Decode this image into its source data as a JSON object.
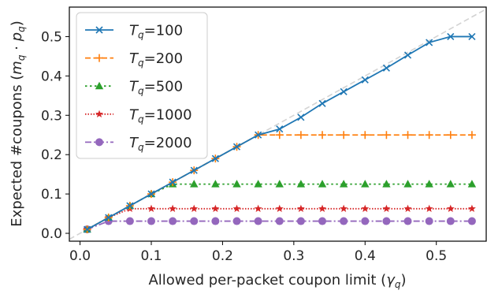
{
  "chart_data": {
    "type": "line",
    "xlabel": "Allowed per-packet coupon limit (γ_q)",
    "ylabel": "Expected #coupons (m_q · p_q)",
    "xlim": [
      -0.015,
      0.57
    ],
    "ylim": [
      -0.02,
      0.575
    ],
    "xticks": [
      "0.0",
      "0.1",
      "0.2",
      "0.3",
      "0.4",
      "0.5"
    ],
    "yticks": [
      "0.0",
      "0.1",
      "0.2",
      "0.3",
      "0.4",
      "0.5"
    ],
    "grid": false,
    "legend_position": "top-left",
    "reference_line": {
      "style": "dashed",
      "color": "#d3d3d3",
      "description": "y = x"
    },
    "series": [
      {
        "name": "T_q=100",
        "color": "#1f77b4",
        "dash": "solid",
        "marker": "x",
        "x": [
          0.01,
          0.04,
          0.07,
          0.1,
          0.13,
          0.16,
          0.19,
          0.22,
          0.25,
          0.28,
          0.31,
          0.34,
          0.37,
          0.4,
          0.43,
          0.46,
          0.49,
          0.52,
          0.55
        ],
        "y": [
          0.01,
          0.04,
          0.07,
          0.1,
          0.13,
          0.16,
          0.19,
          0.22,
          0.25,
          0.265,
          0.295,
          0.33,
          0.36,
          0.39,
          0.42,
          0.453,
          0.485,
          0.5,
          0.5
        ]
      },
      {
        "name": "T_q=200",
        "color": "#ff7f0e",
        "dash": "dashed",
        "marker": "plus",
        "x": [
          0.01,
          0.04,
          0.07,
          0.1,
          0.13,
          0.16,
          0.19,
          0.22,
          0.25,
          0.28,
          0.31,
          0.34,
          0.37,
          0.4,
          0.43,
          0.46,
          0.49,
          0.52,
          0.55
        ],
        "y": [
          0.01,
          0.04,
          0.07,
          0.1,
          0.13,
          0.16,
          0.19,
          0.22,
          0.25,
          0.25,
          0.25,
          0.25,
          0.25,
          0.25,
          0.25,
          0.25,
          0.25,
          0.25,
          0.25
        ]
      },
      {
        "name": "T_q=500",
        "color": "#2ca02c",
        "dash": "dotted",
        "marker": "triangle",
        "x": [
          0.01,
          0.04,
          0.07,
          0.1,
          0.13,
          0.16,
          0.19,
          0.22,
          0.25,
          0.28,
          0.31,
          0.34,
          0.37,
          0.4,
          0.43,
          0.46,
          0.49,
          0.52,
          0.55
        ],
        "y": [
          0.01,
          0.04,
          0.07,
          0.1,
          0.125,
          0.125,
          0.125,
          0.125,
          0.125,
          0.125,
          0.125,
          0.125,
          0.125,
          0.125,
          0.125,
          0.125,
          0.125,
          0.125,
          0.125
        ]
      },
      {
        "name": "T_q=1000",
        "color": "#d62728",
        "dash": "dotted-fine",
        "marker": "star",
        "x": [
          0.01,
          0.04,
          0.07,
          0.1,
          0.13,
          0.16,
          0.19,
          0.22,
          0.25,
          0.28,
          0.31,
          0.34,
          0.37,
          0.4,
          0.43,
          0.46,
          0.49,
          0.52,
          0.55
        ],
        "y": [
          0.01,
          0.04,
          0.0625,
          0.0625,
          0.0625,
          0.0625,
          0.0625,
          0.0625,
          0.0625,
          0.0625,
          0.0625,
          0.0625,
          0.0625,
          0.0625,
          0.0625,
          0.0625,
          0.0625,
          0.0625,
          0.0625
        ]
      },
      {
        "name": "T_q=2000",
        "color": "#9467bd",
        "dash": "dashdot",
        "marker": "circle",
        "x": [
          0.01,
          0.04,
          0.07,
          0.1,
          0.13,
          0.16,
          0.19,
          0.22,
          0.25,
          0.28,
          0.31,
          0.34,
          0.37,
          0.4,
          0.43,
          0.46,
          0.49,
          0.52,
          0.55
        ],
        "y": [
          0.01,
          0.031,
          0.031,
          0.031,
          0.031,
          0.031,
          0.031,
          0.031,
          0.031,
          0.031,
          0.031,
          0.031,
          0.031,
          0.031,
          0.031,
          0.031,
          0.031,
          0.031,
          0.031
        ]
      }
    ]
  }
}
